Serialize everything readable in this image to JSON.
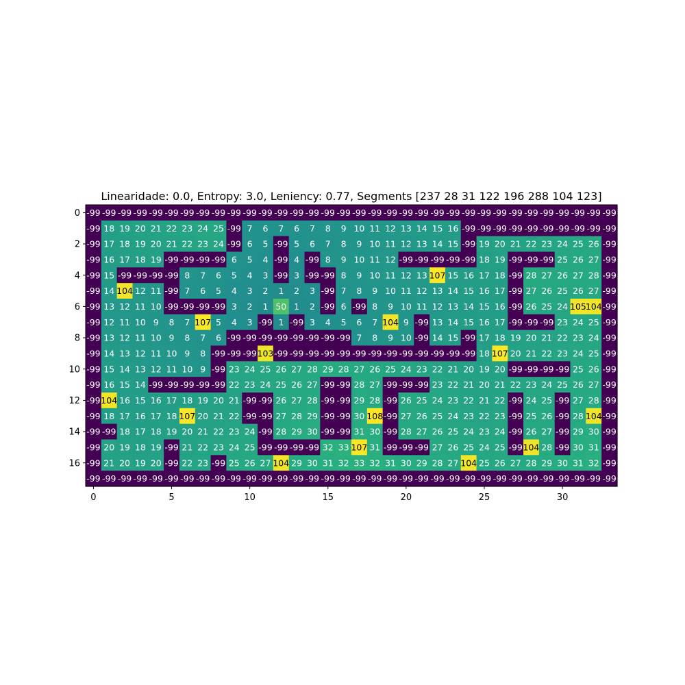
{
  "chart_data": {
    "type": "heatmap",
    "title": "Linearidade: 0.0, Entropy: 3.0, Leniency: 0.77, Segments [237  28  31 122 196 288 104 123]",
    "xlabel": "",
    "ylabel": "",
    "x_ticks": [
      0,
      5,
      10,
      15,
      20,
      25,
      30
    ],
    "y_ticks": [
      0,
      2,
      4,
      6,
      8,
      10,
      12,
      14,
      16
    ],
    "colormap": "viridis",
    "vmin": -99,
    "vmax": 108,
    "grid": false,
    "matrix": [
      [
        -99,
        -99,
        -99,
        -99,
        -99,
        -99,
        -99,
        -99,
        -99,
        -99,
        -99,
        -99,
        -99,
        -99,
        -99,
        -99,
        -99,
        -99,
        -99,
        -99,
        -99,
        -99,
        -99,
        -99,
        -99,
        -99,
        -99,
        -99,
        -99,
        -99,
        -99,
        -99,
        -99,
        -99
      ],
      [
        -99,
        18,
        19,
        20,
        21,
        22,
        23,
        24,
        25,
        -99,
        7,
        6,
        7,
        6,
        7,
        8,
        9,
        10,
        11,
        12,
        13,
        14,
        15,
        16,
        -99,
        -99,
        -99,
        -99,
        -99,
        -99,
        -99,
        -99,
        -99,
        -99
      ],
      [
        -99,
        17,
        18,
        19,
        20,
        21,
        22,
        23,
        24,
        -99,
        6,
        5,
        -99,
        5,
        6,
        7,
        8,
        9,
        10,
        11,
        12,
        13,
        14,
        15,
        -99,
        19,
        20,
        21,
        22,
        23,
        24,
        25,
        26,
        -99
      ],
      [
        -99,
        16,
        17,
        18,
        19,
        -99,
        -99,
        -99,
        -99,
        6,
        5,
        4,
        -99,
        4,
        -99,
        8,
        9,
        10,
        11,
        12,
        -99,
        -99,
        -99,
        -99,
        -99,
        18,
        19,
        -99,
        -99,
        -99,
        25,
        26,
        27,
        -99
      ],
      [
        -99,
        15,
        -99,
        -99,
        -99,
        -99,
        8,
        7,
        6,
        5,
        4,
        3,
        -99,
        3,
        -99,
        -99,
        8,
        9,
        10,
        11,
        12,
        13,
        107,
        15,
        16,
        17,
        18,
        -99,
        28,
        27,
        26,
        27,
        28,
        -99
      ],
      [
        -99,
        14,
        104,
        12,
        11,
        -99,
        7,
        6,
        5,
        4,
        3,
        2,
        1,
        2,
        3,
        -99,
        7,
        8,
        9,
        10,
        11,
        12,
        13,
        14,
        15,
        16,
        17,
        -99,
        27,
        26,
        25,
        26,
        27,
        -99
      ],
      [
        -99,
        13,
        12,
        11,
        10,
        -99,
        -99,
        -99,
        -99,
        3,
        2,
        1,
        50,
        1,
        2,
        -99,
        6,
        -99,
        8,
        9,
        10,
        11,
        12,
        13,
        14,
        15,
        16,
        -99,
        26,
        25,
        24,
        105,
        104,
        -99
      ],
      [
        -99,
        12,
        11,
        10,
        9,
        8,
        7,
        107,
        5,
        4,
        3,
        -99,
        1,
        -99,
        3,
        4,
        5,
        6,
        7,
        104,
        9,
        -99,
        13,
        14,
        15,
        16,
        17,
        -99,
        -99,
        -99,
        23,
        24,
        25,
        -99
      ],
      [
        -99,
        13,
        12,
        11,
        10,
        9,
        8,
        7,
        6,
        -99,
        -99,
        -99,
        -99,
        -99,
        -99,
        -99,
        -99,
        7,
        8,
        9,
        10,
        -99,
        14,
        15,
        -99,
        17,
        18,
        19,
        20,
        21,
        22,
        23,
        24,
        -99
      ],
      [
        -99,
        14,
        13,
        12,
        11,
        10,
        9,
        8,
        -99,
        -99,
        -99,
        103,
        -99,
        -99,
        -99,
        -99,
        -99,
        -99,
        -99,
        -99,
        -99,
        -99,
        -99,
        -99,
        -99,
        18,
        107,
        20,
        21,
        22,
        23,
        24,
        25,
        -99
      ],
      [
        -99,
        15,
        14,
        13,
        12,
        11,
        10,
        9,
        -99,
        23,
        24,
        25,
        26,
        27,
        28,
        29,
        28,
        27,
        26,
        25,
        24,
        23,
        22,
        21,
        20,
        19,
        20,
        -99,
        -99,
        -99,
        -99,
        25,
        26,
        -99
      ],
      [
        -99,
        16,
        15,
        14,
        -99,
        -99,
        -99,
        -99,
        -99,
        22,
        23,
        24,
        25,
        26,
        27,
        -99,
        -99,
        28,
        27,
        -99,
        -99,
        -99,
        23,
        22,
        21,
        20,
        21,
        22,
        23,
        24,
        25,
        26,
        27,
        -99
      ],
      [
        -99,
        104,
        16,
        15,
        16,
        17,
        18,
        19,
        20,
        21,
        -99,
        -99,
        26,
        27,
        28,
        -99,
        -99,
        29,
        28,
        -99,
        26,
        25,
        24,
        23,
        22,
        21,
        22,
        -99,
        24,
        25,
        -99,
        27,
        28,
        -99
      ],
      [
        -99,
        18,
        17,
        16,
        17,
        18,
        107,
        20,
        21,
        22,
        -99,
        -99,
        27,
        28,
        29,
        -99,
        -99,
        30,
        108,
        -99,
        27,
        26,
        25,
        24,
        23,
        22,
        23,
        -99,
        25,
        26,
        -99,
        28,
        104,
        -99
      ],
      [
        -99,
        -99,
        18,
        17,
        18,
        19,
        20,
        21,
        22,
        23,
        24,
        -99,
        28,
        29,
        30,
        -99,
        -99,
        31,
        30,
        -99,
        28,
        27,
        26,
        25,
        24,
        23,
        24,
        -99,
        26,
        27,
        -99,
        29,
        30,
        -99
      ],
      [
        -99,
        20,
        19,
        18,
        19,
        -99,
        21,
        22,
        23,
        24,
        25,
        -99,
        -99,
        -99,
        -99,
        32,
        33,
        107,
        31,
        -99,
        -99,
        -99,
        27,
        26,
        25,
        24,
        25,
        -99,
        104,
        28,
        -99,
        30,
        31,
        -99
      ],
      [
        -99,
        21,
        20,
        19,
        20,
        -99,
        22,
        23,
        -99,
        25,
        26,
        27,
        104,
        29,
        30,
        31,
        32,
        33,
        32,
        31,
        30,
        29,
        28,
        27,
        104,
        25,
        26,
        27,
        28,
        29,
        30,
        31,
        32,
        -99
      ],
      [
        -99,
        -99,
        -99,
        -99,
        -99,
        -99,
        -99,
        -99,
        -99,
        -99,
        -99,
        -99,
        -99,
        -99,
        -99,
        -99,
        -99,
        -99,
        -99,
        -99,
        -99,
        -99,
        -99,
        -99,
        -99,
        -99,
        -99,
        -99,
        -99,
        -99,
        -99,
        -99,
        -99,
        -99
      ]
    ]
  }
}
